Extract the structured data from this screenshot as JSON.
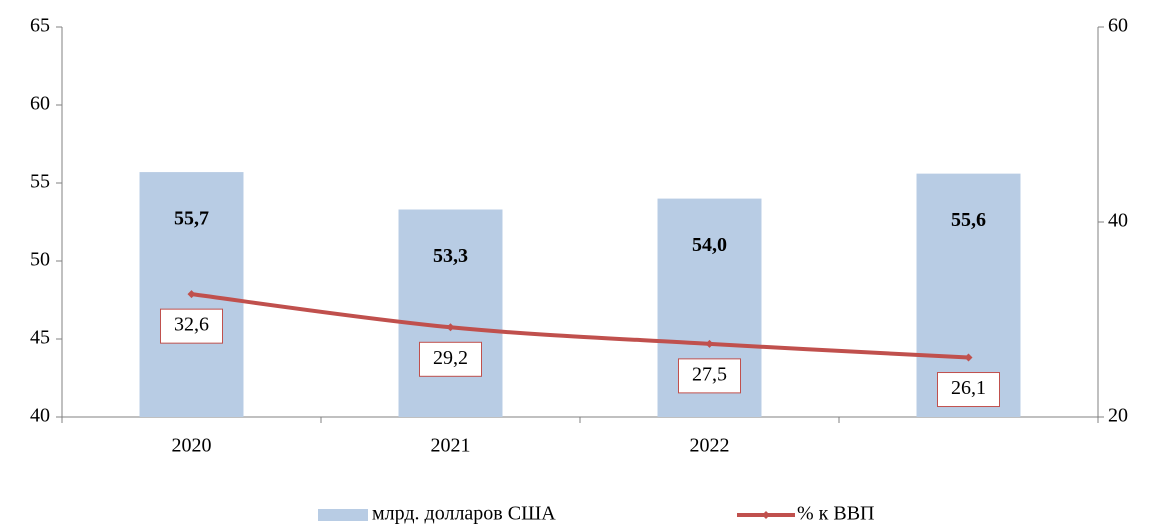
{
  "chart_data": {
    "type": "bar",
    "categories": [
      "2020",
      "2021",
      "2022",
      null
    ],
    "series": [
      {
        "name": "млрд. долларов США",
        "type": "bar",
        "color": "#b8cce4",
        "values": [
          55.7,
          53.3,
          54.0,
          55.6
        ],
        "value_labels": [
          "55,7",
          "53,3",
          "54,0",
          "55,6"
        ]
      },
      {
        "name": "% к ВВП",
        "type": "line",
        "axis": "y2",
        "color": "#c0504d",
        "values": [
          32.6,
          29.2,
          27.5,
          26.1
        ],
        "value_labels": [
          "32,6",
          "29,2",
          "27,5",
          "26,1"
        ]
      }
    ],
    "ylim": [
      40,
      65
    ],
    "yticks": [
      40,
      45,
      50,
      55,
      60,
      65
    ],
    "y2lim": [
      20,
      60
    ],
    "y2ticks": [
      20,
      40,
      60
    ],
    "legend": "bottom"
  }
}
